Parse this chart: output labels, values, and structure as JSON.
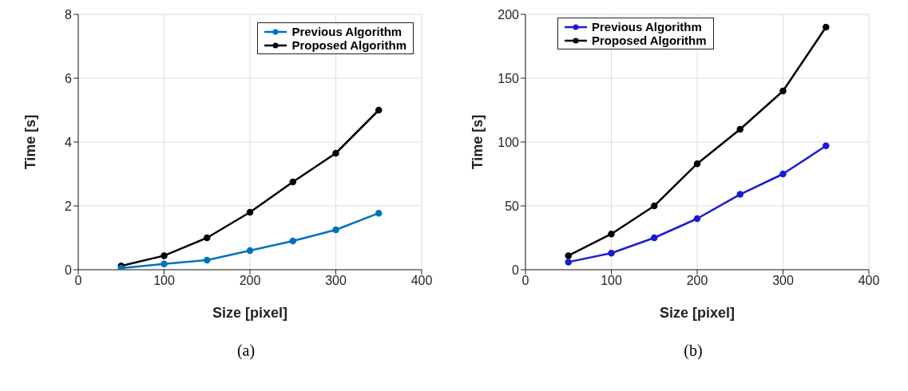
{
  "chart_data": [
    {
      "type": "line",
      "xlabel": "Size [pixel]",
      "ylabel": "Time [s]",
      "annotations": [
        "(a)"
      ],
      "x": [
        50,
        100,
        150,
        200,
        250,
        300,
        350
      ],
      "xlim": [
        0,
        400
      ],
      "xticks": [
        0,
        100,
        200,
        300,
        400
      ],
      "ylim": [
        0,
        8
      ],
      "yticks": [
        0,
        2,
        4,
        6,
        8
      ],
      "grid": true,
      "legend": "top right",
      "marker": "circle",
      "series": [
        {
          "name": "Previous Algorithm",
          "color": "#0072bd",
          "values": [
            0.05,
            0.18,
            0.3,
            0.6,
            0.9,
            1.25,
            1.77
          ]
        },
        {
          "name": "Proposed Algorithm",
          "color": "#000000",
          "values": [
            0.12,
            0.44,
            1.0,
            1.8,
            2.75,
            3.65,
            5.0
          ]
        }
      ]
    },
    {
      "type": "line",
      "xlabel": "Size [pixel]",
      "ylabel": "Time [s]",
      "annotations": [
        "(b)"
      ],
      "x": [
        50,
        100,
        150,
        200,
        250,
        300,
        350
      ],
      "xlim": [
        0,
        400
      ],
      "xticks": [
        0,
        100,
        200,
        300,
        400
      ],
      "ylim": [
        0,
        200
      ],
      "yticks": [
        0,
        50,
        100,
        150,
        200
      ],
      "grid": true,
      "legend": "top left",
      "marker": "circle",
      "series": [
        {
          "name": "Previous Algorithm",
          "color": "#1a1ad6",
          "values": [
            6,
            13,
            25,
            40,
            59,
            75,
            97
          ]
        },
        {
          "name": "Proposed Algorithm",
          "color": "#000000",
          "values": [
            11,
            28,
            50,
            83,
            110,
            140,
            190
          ]
        }
      ]
    }
  ]
}
